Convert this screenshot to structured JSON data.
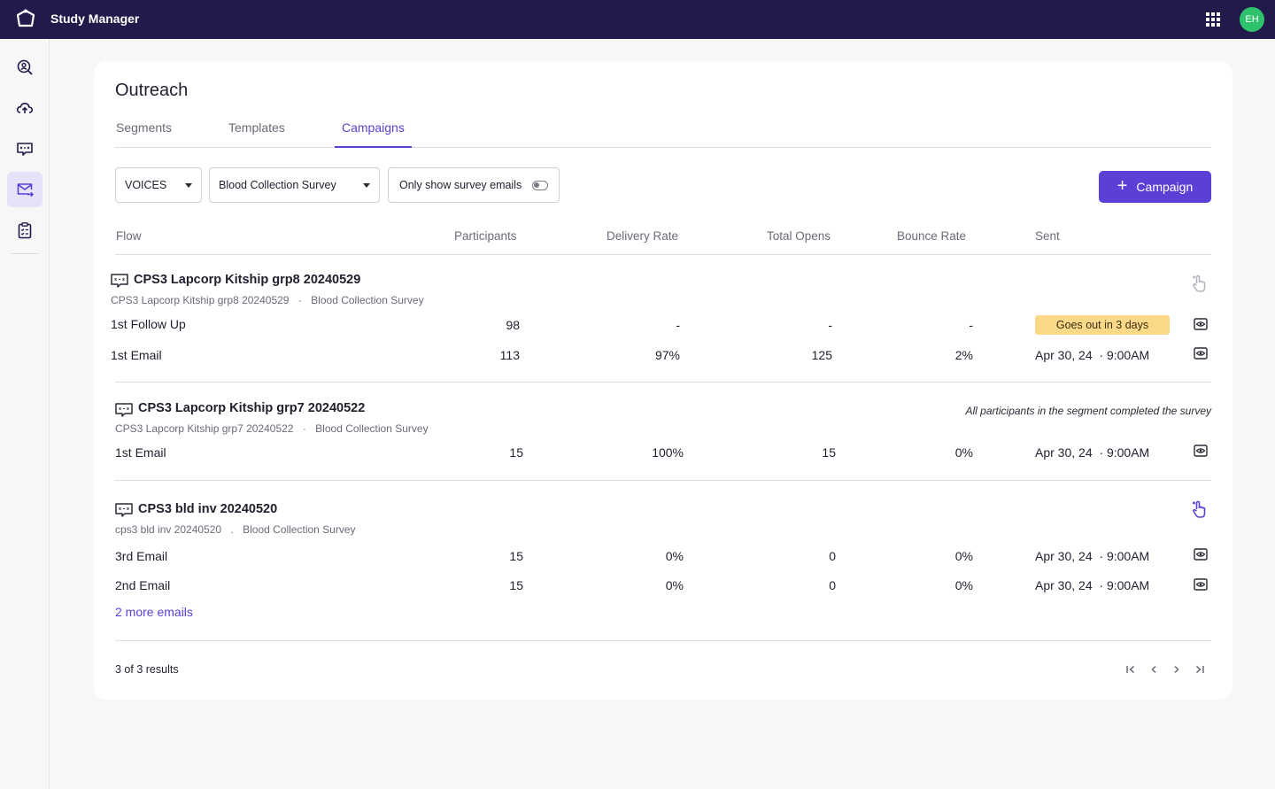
{
  "app": {
    "title": "Study Manager",
    "avatar_initials": "EH"
  },
  "sidebar": {
    "items": [
      {
        "icon": "search-user-icon"
      },
      {
        "icon": "cloud-upload-icon"
      },
      {
        "icon": "message-icon"
      },
      {
        "icon": "mail-send-icon",
        "active": true
      },
      {
        "icon": "clipboard-icon"
      }
    ]
  },
  "page": {
    "title": "Outreach",
    "tabs": [
      {
        "label": "Segments"
      },
      {
        "label": "Templates"
      },
      {
        "label": "Campaigns",
        "active": true
      }
    ]
  },
  "filters": {
    "study": "VOICES",
    "survey": "Blood Collection Survey",
    "toggle_label": "Only show survey emails",
    "toggle_on": false
  },
  "actions": {
    "new_campaign": "Campaign"
  },
  "table": {
    "columns": [
      "Flow",
      "Participants",
      "Delivery Rate",
      "Total Opens",
      "Bounce Rate",
      "Sent"
    ]
  },
  "flows": [
    {
      "title": "CPS3 Lapcorp Kitship grp8 20240529",
      "segment": "CPS3 Lapcorp Kitship grp8 20240529",
      "survey": "Blood Collection Survey",
      "separator": "·",
      "rows": [
        {
          "label": "1st Follow Up",
          "participants": "98",
          "delivery_rate": "-",
          "total_opens": "-",
          "bounce_rate": "-",
          "badge": "Goes out in 3 days"
        },
        {
          "label": "1st Email",
          "participants": "113",
          "delivery_rate": "97%",
          "total_opens": "125",
          "bounce_rate": "2%",
          "sent_date": "Apr 30, 24",
          "sent_time": "· 9:00AM"
        }
      ]
    },
    {
      "title": "CPS3 Lapcorp Kitship grp7 20240522",
      "segment": "CPS3 Lapcorp Kitship grp7 20240522",
      "survey": "Blood Collection Survey",
      "separator": "·",
      "note": "All participants in the segment completed the survey",
      "rows": [
        {
          "label": "1st Email",
          "participants": "15",
          "delivery_rate": "100%",
          "total_opens": "15",
          "bounce_rate": "0%",
          "sent_date": "Apr 30, 24",
          "sent_time": "· 9:00AM"
        }
      ]
    },
    {
      "title": "CPS3 bld inv 20240520",
      "segment": "cps3 bld inv 20240520",
      "survey": "Blood Collection Survey",
      "separator": ".",
      "rows": [
        {
          "label": "3rd Email",
          "participants": "15",
          "delivery_rate": "0%",
          "total_opens": "0",
          "bounce_rate": "0%",
          "sent_date": "Apr 30, 24",
          "sent_time": "· 9:00AM"
        },
        {
          "label": "2nd Email",
          "participants": "15",
          "delivery_rate": "0%",
          "total_opens": "0",
          "bounce_rate": "0%",
          "sent_date": "Apr 30, 24",
          "sent_time": "· 9:00AM"
        }
      ],
      "more_link": "2 more emails"
    }
  ],
  "pagination": {
    "results_text": "3 of 3 results"
  },
  "colors": {
    "topbar": "#221a4a",
    "accent": "#5b3fd6",
    "badge": "#fcd989",
    "avatar": "#2ec26c"
  }
}
